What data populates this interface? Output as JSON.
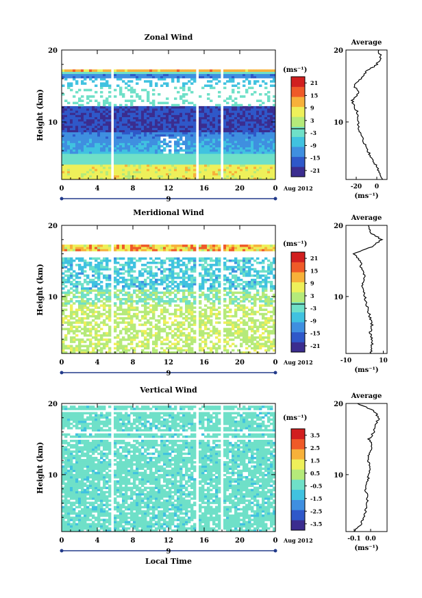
{
  "colorscale": [
    "#3b2d8f",
    "#2f58c9",
    "#3f8fe0",
    "#40c2e0",
    "#6fe0c8",
    "#b5ea7a",
    "#eef05a",
    "#f7b13a",
    "#ef5a28",
    "#d11f1f"
  ],
  "common": {
    "height_label": "Height (km)",
    "unit_label": "(ms⁻¹)",
    "date_label": "Aug 2012",
    "day_label": "9",
    "average_title": "Average",
    "xlabel": "Local Time"
  },
  "chart_data": [
    {
      "type": "heatmap",
      "title": "Zonal Wind",
      "ylabel": "Height (km)",
      "xlabel": "",
      "xlim": [
        0,
        24
      ],
      "ylim": [
        2,
        20
      ],
      "xticks": [
        "0",
        "4",
        "8",
        "12",
        "16",
        "20",
        "0"
      ],
      "yticks": [
        "10",
        "20"
      ],
      "colorbar_ticks": [
        "21",
        "15",
        "9",
        "3",
        "-3",
        "-9",
        "-15",
        "-21"
      ],
      "colorbar_range": [
        -24,
        24
      ],
      "profile": {
        "title": "Average",
        "xlim": [
          -30,
          10
        ],
        "xticks": [
          "-20",
          "0"
        ],
        "heights": [
          2,
          3,
          4,
          5,
          6,
          7,
          8,
          9,
          10,
          11,
          12,
          13,
          14,
          15,
          16,
          17,
          18,
          19,
          20
        ],
        "values": [
          6,
          3,
          -1,
          -5,
          -9,
          -12,
          -15,
          -17,
          -18,
          -18,
          -21,
          -24,
          -18,
          -22,
          -16,
          -10,
          0,
          4,
          2
        ]
      }
    },
    {
      "type": "heatmap",
      "title": "Meridional Wind",
      "ylabel": "Height (km)",
      "xlabel": "",
      "xlim": [
        0,
        24
      ],
      "ylim": [
        2,
        20
      ],
      "xticks": [
        "0",
        "4",
        "8",
        "12",
        "16",
        "20",
        "0"
      ],
      "yticks": [
        "10",
        "20"
      ],
      "colorbar_ticks": [
        "21",
        "15",
        "9",
        "3",
        "-3",
        "-9",
        "-15",
        "-21"
      ],
      "colorbar_range": [
        -24,
        24
      ],
      "profile": {
        "title": "Average",
        "xlim": [
          -10,
          12
        ],
        "xticks": [
          "-10",
          "10"
        ],
        "heights": [
          2,
          3,
          4,
          5,
          6,
          7,
          8,
          9,
          10,
          11,
          12,
          13,
          14,
          15,
          16,
          17,
          18,
          19,
          20
        ],
        "values": [
          3,
          4,
          4,
          3,
          4,
          3,
          2,
          1,
          0,
          -1,
          -1,
          0,
          -2,
          -2,
          -6,
          4,
          9,
          3,
          2
        ]
      }
    },
    {
      "type": "heatmap",
      "title": "Vertical Wind",
      "ylabel": "Height (km)",
      "xlabel": "Local Time",
      "xlim": [
        0,
        24
      ],
      "ylim": [
        2,
        20
      ],
      "xticks": [
        "0",
        "4",
        "8",
        "12",
        "16",
        "20",
        "0"
      ],
      "yticks": [
        "10",
        "20"
      ],
      "colorbar_ticks": [
        "3.5",
        "2.5",
        "1.5",
        "0.5",
        "-0.5",
        "-1.5",
        "-2.5",
        "-3.5"
      ],
      "colorbar_range": [
        -4,
        4
      ],
      "profile": {
        "title": "Average",
        "xlim": [
          -0.15,
          0.1
        ],
        "xticks": [
          "-0.1",
          "0.0"
        ],
        "heights": [
          2,
          3,
          4,
          5,
          6,
          7,
          8,
          9,
          10,
          11,
          12,
          13,
          14,
          15,
          16,
          17,
          18,
          19,
          20
        ],
        "values": [
          -0.1,
          -0.06,
          -0.04,
          -0.03,
          -0.02,
          -0.02,
          -0.03,
          -0.02,
          -0.01,
          0.0,
          -0.02,
          -0.01,
          0.01,
          -0.01,
          0.02,
          0.03,
          0.05,
          0.02,
          -0.08
        ]
      }
    }
  ]
}
